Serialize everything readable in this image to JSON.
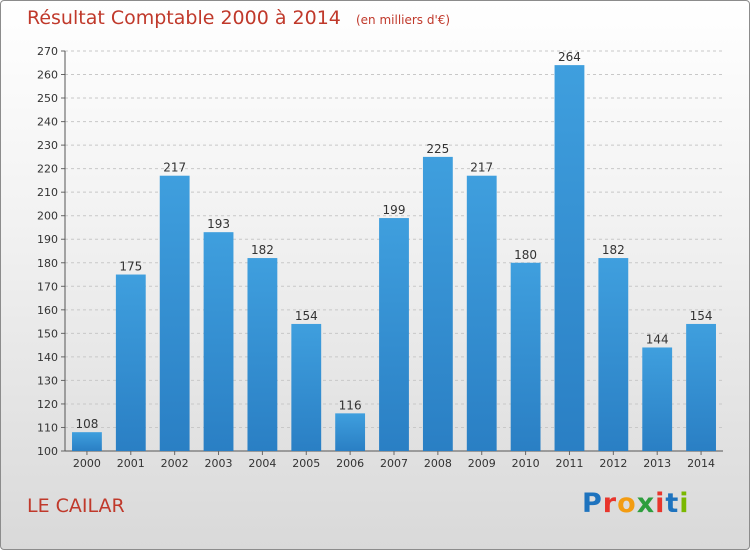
{
  "chart_data": {
    "type": "bar",
    "title": "Résultat Comptable 2000 à 2014",
    "unit": "(en milliers d'€)",
    "categories": [
      "2000",
      "2001",
      "2002",
      "2003",
      "2004",
      "2005",
      "2006",
      "2007",
      "2008",
      "2009",
      "2010",
      "2011",
      "2012",
      "2013",
      "2014"
    ],
    "values": [
      108,
      175,
      217,
      193,
      182,
      154,
      116,
      199,
      225,
      217,
      180,
      264,
      182,
      144,
      154
    ],
    "ylim": [
      100,
      270
    ],
    "yticks": [
      100,
      110,
      120,
      130,
      140,
      150,
      160,
      170,
      180,
      190,
      200,
      210,
      220,
      230,
      240,
      250,
      260,
      270
    ],
    "grid": true,
    "bar_color": "#3f9fde",
    "bar_color_dark": "#2a7fc4"
  },
  "commune": "LE CAILAR",
  "logo": "Proxiti"
}
